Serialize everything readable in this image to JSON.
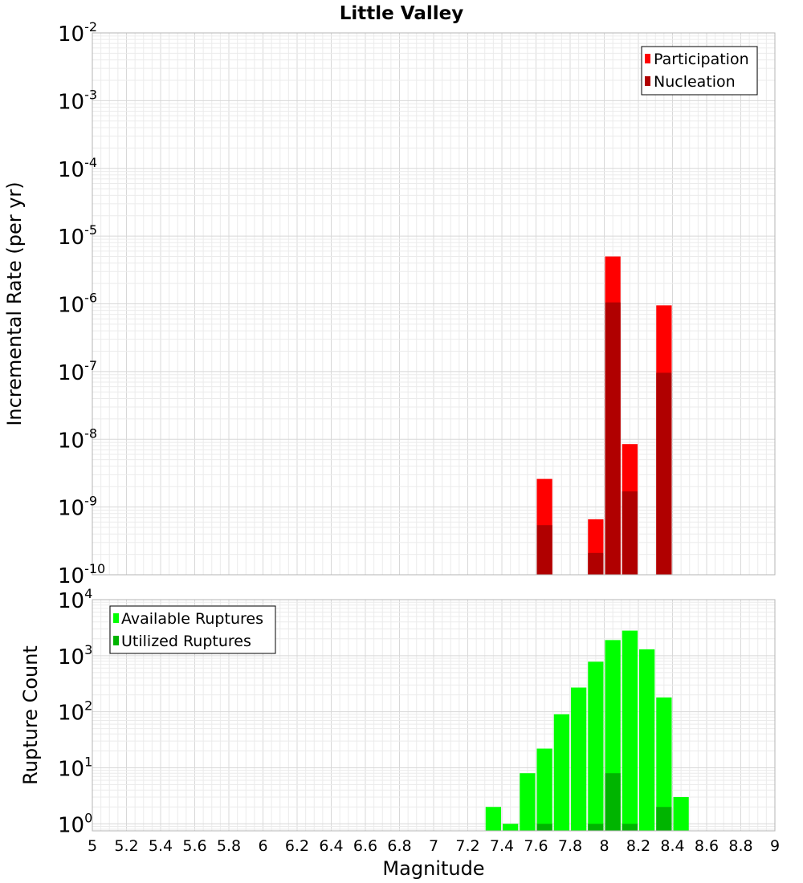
{
  "chart_data": [
    {
      "type": "bar",
      "title": "Little Valley",
      "xlabel": "",
      "ylabel": "Incremental Rate (per yr)",
      "xlim": [
        5,
        9
      ],
      "ylim": [
        1e-10,
        0.01
      ],
      "yscale": "log",
      "bar_width": 0.1,
      "grid": true,
      "legend_position": "top-right",
      "series": [
        {
          "name": "Participation",
          "color": "#ff0000",
          "x": [
            7.65,
            7.95,
            8.05,
            8.15,
            8.35
          ],
          "values": [
            2.6e-09,
            6.6e-10,
            5e-06,
            8.5e-09,
            9.5e-07
          ]
        },
        {
          "name": "Nucleation",
          "color": "#b00000",
          "x": [
            7.65,
            7.95,
            8.05,
            8.15,
            8.35
          ],
          "values": [
            5.4e-10,
            2.1e-10,
            1.05e-06,
            1.7e-09,
            9.6e-08
          ]
        }
      ]
    },
    {
      "type": "bar",
      "title": "",
      "xlabel": "Magnitude",
      "ylabel": "Rupture Count",
      "xlim": [
        5,
        9
      ],
      "ylim": [
        0.75,
        10000
      ],
      "yscale": "log",
      "bar_width": 0.1,
      "grid": true,
      "legend_position": "top-left",
      "series": [
        {
          "name": "Available Ruptures",
          "color": "#00ff00",
          "x": [
            7.35,
            7.45,
            7.55,
            7.65,
            7.75,
            7.85,
            7.95,
            8.05,
            8.15,
            8.25,
            8.35,
            8.45
          ],
          "values": [
            2,
            1,
            8,
            22,
            90,
            270,
            780,
            1900,
            2800,
            1300,
            180,
            3
          ]
        },
        {
          "name": "Utilized Ruptures",
          "color": "#00b400",
          "x": [
            7.65,
            7.95,
            8.05,
            8.15,
            8.35
          ],
          "values": [
            1,
            1,
            8,
            1,
            2
          ]
        }
      ]
    }
  ],
  "axes": {
    "x_ticks": [
      "5",
      "5.2",
      "5.4",
      "5.6",
      "5.8",
      "6",
      "6.2",
      "6.4",
      "6.6",
      "6.8",
      "7",
      "7.2",
      "7.4",
      "7.6",
      "7.8",
      "8",
      "8.2",
      "8.4",
      "8.6",
      "8.8",
      "9"
    ],
    "top_y_exponents": [
      -10,
      -9,
      -8,
      -7,
      -6,
      -5,
      -4,
      -3,
      -2
    ],
    "bottom_y_exponents": [
      0,
      1,
      2,
      3,
      4
    ],
    "tick_base": "10"
  }
}
